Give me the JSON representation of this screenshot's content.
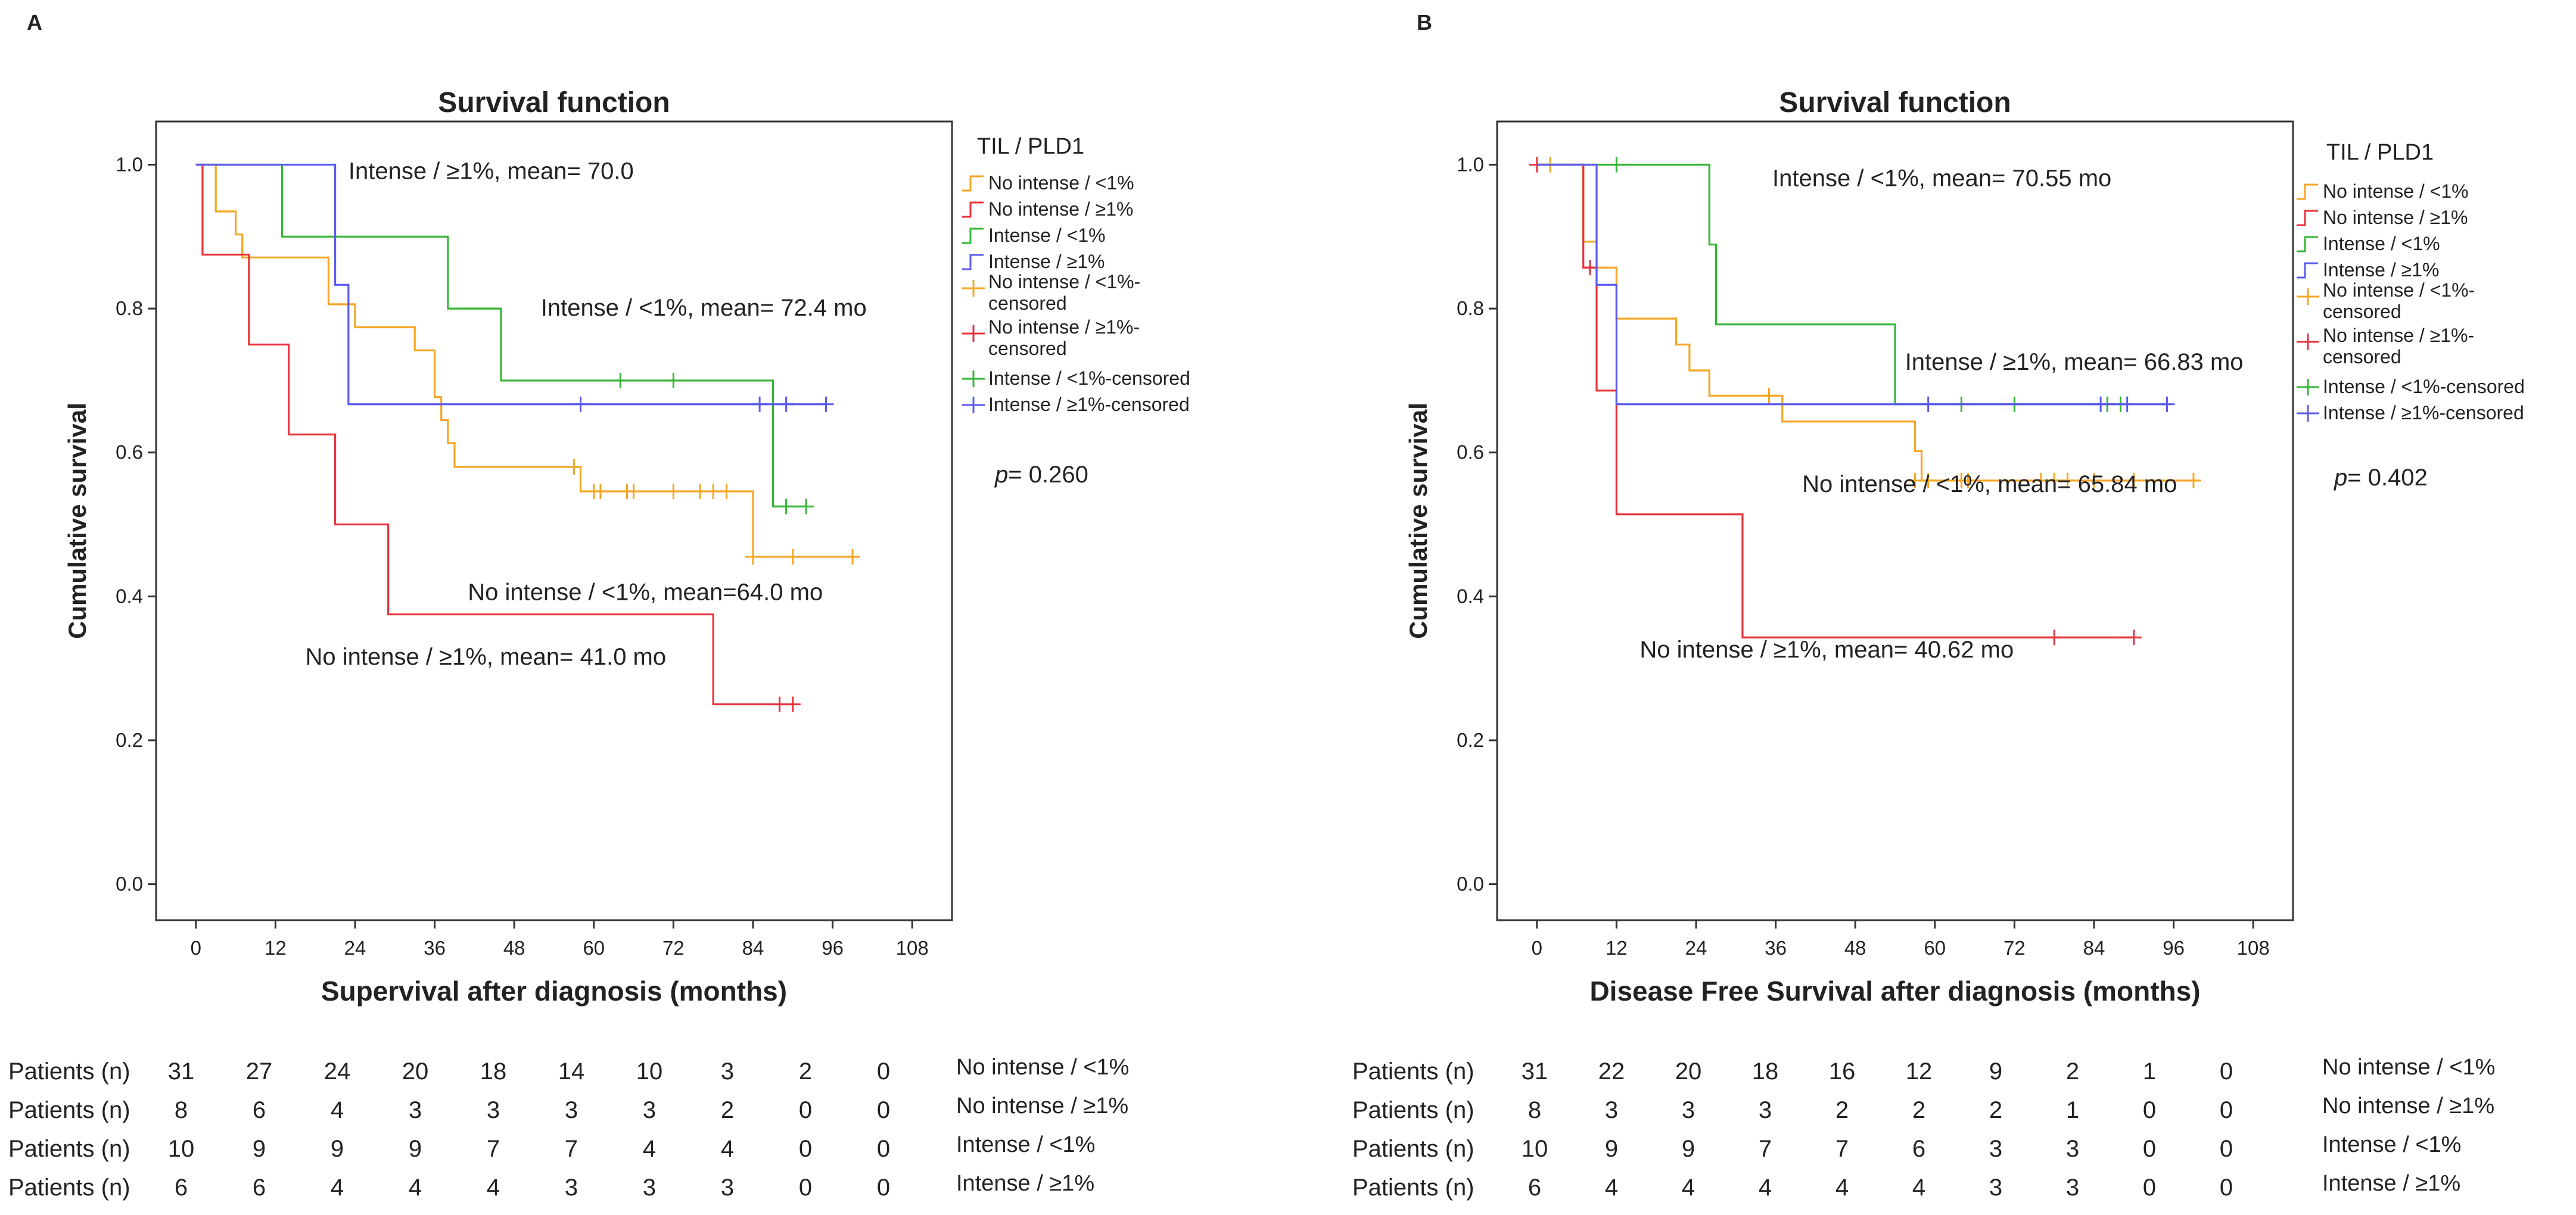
{
  "colors": {
    "No intense / <1%": "#f5a623",
    "No intense / ≥1%": "#e8323c",
    "Intense / <1%": "#35b535",
    "Intense / ≥1%": "#5b5bf0"
  },
  "chart_data": [
    {
      "panel": "A",
      "type": "line",
      "subtype": "kaplan-meier",
      "title": "Survival function",
      "xlabel": "Supervival after diagnosis (months)",
      "ylabel": "Cumulative survival",
      "x_ticks": [
        0,
        12,
        24,
        36,
        48,
        60,
        72,
        84,
        96,
        108
      ],
      "y_ticks": [
        0.0,
        0.2,
        0.4,
        0.6,
        0.8,
        1.0
      ],
      "y_tick_labels": [
        "0.0",
        "0.2",
        "0.4",
        "0.6",
        "0.8",
        "1.0"
      ],
      "xlim": [
        -6,
        114
      ],
      "ylim": [
        -0.05,
        1.06
      ],
      "legend": {
        "title": "TIL / PLD1",
        "entries": [
          {
            "label": "No intense / <1%",
            "series": "No intense / <1%",
            "censored": false
          },
          {
            "label": "No intense / ≥1%",
            "series": "No intense / ≥1%",
            "censored": false
          },
          {
            "label": "Intense / <1%",
            "series": "Intense / <1%",
            "censored": false
          },
          {
            "label": "Intense / ≥1%",
            "series": "Intense / ≥1%",
            "censored": false
          },
          {
            "label": "No intense / <1%-censored",
            "series": "No intense / <1%",
            "censored": true
          },
          {
            "label": "No intense / ≥1%-censored",
            "series": "No intense / ≥1%",
            "censored": true
          },
          {
            "label": "Intense / <1%-censored",
            "series": "Intense / <1%",
            "censored": true
          },
          {
            "label": "Intense / ≥1%-censored",
            "series": "Intense / ≥1%",
            "censored": true
          }
        ]
      },
      "p_value": {
        "label": "p",
        "value": "= 0.260"
      },
      "annotations": [
        {
          "text": "Intense / ≥1%, mean= 70.0",
          "x": 23,
          "y": 0.98
        },
        {
          "text": "Intense / <1%, mean= 72.4 mo",
          "x": 52,
          "y": 0.79
        },
        {
          "text": "No intense / <1%, mean=64.0 mo",
          "x": 41,
          "y": 0.395
        },
        {
          "text": "No intense / ≥1%, mean= 41.0 mo",
          "x": 16.5,
          "y": 0.305
        }
      ],
      "series": [
        {
          "name": "No intense / <1%",
          "steps": [
            [
              0,
              1.0
            ],
            [
              3,
              0.935
            ],
            [
              6,
              0.903
            ],
            [
              7,
              0.871
            ],
            [
              20,
              0.806
            ],
            [
              24,
              0.774
            ],
            [
              33,
              0.742
            ],
            [
              36,
              0.677
            ],
            [
              37,
              0.645
            ],
            [
              38,
              0.613
            ],
            [
              39,
              0.58
            ],
            [
              58,
              0.546
            ],
            [
              84,
              0.455
            ],
            [
              100,
              0.455
            ]
          ],
          "censored": [
            [
              57,
              0.58
            ],
            [
              60,
              0.546
            ],
            [
              61,
              0.546
            ],
            [
              65,
              0.546
            ],
            [
              66,
              0.546
            ],
            [
              72,
              0.546
            ],
            [
              76,
              0.546
            ],
            [
              78,
              0.546
            ],
            [
              80,
              0.546
            ],
            [
              84,
              0.455
            ],
            [
              90,
              0.455
            ],
            [
              99,
              0.455
            ]
          ]
        },
        {
          "name": "No intense / ≥1%",
          "steps": [
            [
              0,
              1.0
            ],
            [
              1,
              0.875
            ],
            [
              8,
              0.75
            ],
            [
              14,
              0.625
            ],
            [
              21,
              0.5
            ],
            [
              29,
              0.375
            ],
            [
              78,
              0.25
            ],
            [
              90,
              0.25
            ]
          ],
          "censored": [
            [
              88,
              0.25
            ],
            [
              90,
              0.25
            ]
          ]
        },
        {
          "name": "Intense / <1%",
          "steps": [
            [
              0,
              1.0
            ],
            [
              13,
              0.9
            ],
            [
              38,
              0.8
            ],
            [
              46,
              0.7
            ],
            [
              87,
              0.525
            ],
            [
              92,
              0.525
            ]
          ],
          "censored": [
            [
              64,
              0.7
            ],
            [
              72,
              0.7
            ],
            [
              89,
              0.525
            ],
            [
              92,
              0.525
            ]
          ]
        },
        {
          "name": "Intense / ≥1%",
          "steps": [
            [
              0,
              1.0
            ],
            [
              21,
              0.833
            ],
            [
              23,
              0.667
            ],
            [
              95,
              0.667
            ]
          ],
          "censored": [
            [
              58,
              0.667
            ],
            [
              85,
              0.667
            ],
            [
              89,
              0.667
            ],
            [
              95,
              0.667
            ]
          ]
        }
      ],
      "risk_table": {
        "row_label": "Patients (n)",
        "rows": [
          {
            "name": "No intense / <1%",
            "values": [
              31,
              27,
              24,
              20,
              18,
              14,
              10,
              3,
              2,
              0
            ]
          },
          {
            "name": "No intense / ≥1%",
            "values": [
              8,
              6,
              4,
              3,
              3,
              3,
              3,
              2,
              0,
              0
            ]
          },
          {
            "name": "Intense / <1%",
            "values": [
              10,
              9,
              9,
              9,
              7,
              7,
              4,
              4,
              0,
              0
            ]
          },
          {
            "name": "Intense / ≥1%",
            "values": [
              6,
              6,
              4,
              4,
              4,
              3,
              3,
              3,
              0,
              0
            ]
          }
        ]
      }
    },
    {
      "panel": "B",
      "type": "line",
      "subtype": "kaplan-meier",
      "title": "Survival function",
      "xlabel": "Disease Free Survival after diagnosis (months)",
      "ylabel": "Cumulative survival",
      "x_ticks": [
        0,
        12,
        24,
        36,
        48,
        60,
        72,
        84,
        96,
        108
      ],
      "y_ticks": [
        0.0,
        0.2,
        0.4,
        0.6,
        0.8,
        1.0
      ],
      "y_tick_labels": [
        "0.0",
        "0.2",
        "0.4",
        "0.6",
        "0.8",
        "1.0"
      ],
      "xlim": [
        -6,
        114
      ],
      "ylim": [
        -0.05,
        1.06
      ],
      "legend": {
        "title": "TIL / PLD1",
        "entries": [
          {
            "label": "No intense / <1%",
            "series": "No intense / <1%",
            "censored": false
          },
          {
            "label": "No intense / ≥1%",
            "series": "No intense / ≥1%",
            "censored": false
          },
          {
            "label": "Intense / <1%",
            "series": "Intense / <1%",
            "censored": false
          },
          {
            "label": "Intense / ≥1%",
            "series": "Intense / ≥1%",
            "censored": false
          },
          {
            "label": "No intense / <1%-censored",
            "series": "No intense / <1%",
            "censored": true
          },
          {
            "label": "No intense / ≥1%-censored",
            "series": "No intense / ≥1%",
            "censored": true
          },
          {
            "label": "Intense / <1%-censored",
            "series": "Intense / <1%",
            "censored": true
          },
          {
            "label": "Intense / ≥1%-censored",
            "series": "Intense / ≥1%",
            "censored": true
          }
        ]
      },
      "p_value": {
        "label": "p",
        "value": "= 0.402"
      },
      "annotations": [
        {
          "text": "Intense / <1%, mean= 70.55 mo",
          "x": 35.5,
          "y": 0.97
        },
        {
          "text": "Intense / ≥1%, mean= 66.83 mo",
          "x": 55.5,
          "y": 0.715
        },
        {
          "text": "No intense / <1%, mean= 65.84 mo",
          "x": 40,
          "y": 0.545
        },
        {
          "text": "No intense / ≥1%, mean= 40.62 mo",
          "x": 15.5,
          "y": 0.315
        }
      ],
      "series": [
        {
          "name": "No intense / <1%",
          "steps": [
            [
              0,
              1.0
            ],
            [
              7,
              0.893
            ],
            [
              9,
              0.857
            ],
            [
              12,
              0.786
            ],
            [
              21,
              0.75
            ],
            [
              23,
              0.714
            ],
            [
              26,
              0.679
            ],
            [
              37,
              0.643
            ],
            [
              57,
              0.602
            ],
            [
              58,
              0.561
            ],
            [
              100,
              0.561
            ]
          ],
          "censored": [
            [
              2,
              1.0
            ],
            [
              35,
              0.679
            ],
            [
              57,
              0.561
            ],
            [
              59,
              0.561
            ],
            [
              64,
              0.561
            ],
            [
              65,
              0.561
            ],
            [
              76,
              0.561
            ],
            [
              78,
              0.561
            ],
            [
              80,
              0.561
            ],
            [
              84,
              0.561
            ],
            [
              90,
              0.561
            ],
            [
              99,
              0.561
            ]
          ]
        },
        {
          "name": "No intense / ≥1%",
          "steps": [
            [
              0,
              1.0
            ],
            [
              7,
              0.857
            ],
            [
              9,
              0.686
            ],
            [
              12,
              0.514
            ],
            [
              31,
              0.343
            ],
            [
              90,
              0.343
            ]
          ],
          "censored": [
            [
              0,
              1.0
            ],
            [
              8,
              0.857
            ],
            [
              78,
              0.343
            ],
            [
              90,
              0.343
            ]
          ]
        },
        {
          "name": "Intense / <1%",
          "steps": [
            [
              0,
              1.0
            ],
            [
              26,
              0.889
            ],
            [
              27,
              0.778
            ],
            [
              54,
              0.667
            ],
            [
              88,
              0.667
            ]
          ],
          "censored": [
            [
              12,
              1.0
            ],
            [
              64,
              0.667
            ],
            [
              72,
              0.667
            ],
            [
              86,
              0.667
            ],
            [
              88,
              0.667
            ]
          ]
        },
        {
          "name": "Intense / ≥1%",
          "steps": [
            [
              0,
              1.0
            ],
            [
              9,
              0.833
            ],
            [
              12,
              0.667
            ],
            [
              95,
              0.667
            ]
          ],
          "censored": [
            [
              59,
              0.667
            ],
            [
              85,
              0.667
            ],
            [
              89,
              0.667
            ],
            [
              95,
              0.667
            ]
          ]
        }
      ],
      "risk_table": {
        "row_label": "Patients (n)",
        "rows": [
          {
            "name": "No intense / <1%",
            "values": [
              31,
              22,
              20,
              18,
              16,
              12,
              9,
              2,
              1,
              0
            ]
          },
          {
            "name": "No intense / ≥1%",
            "values": [
              8,
              3,
              3,
              3,
              2,
              2,
              2,
              1,
              0,
              0
            ]
          },
          {
            "name": "Intense / <1%",
            "values": [
              10,
              9,
              9,
              7,
              7,
              6,
              3,
              3,
              0,
              0
            ]
          },
          {
            "name": "Intense / ≥1%",
            "values": [
              6,
              4,
              4,
              4,
              4,
              4,
              3,
              3,
              0,
              0
            ]
          }
        ]
      }
    }
  ]
}
